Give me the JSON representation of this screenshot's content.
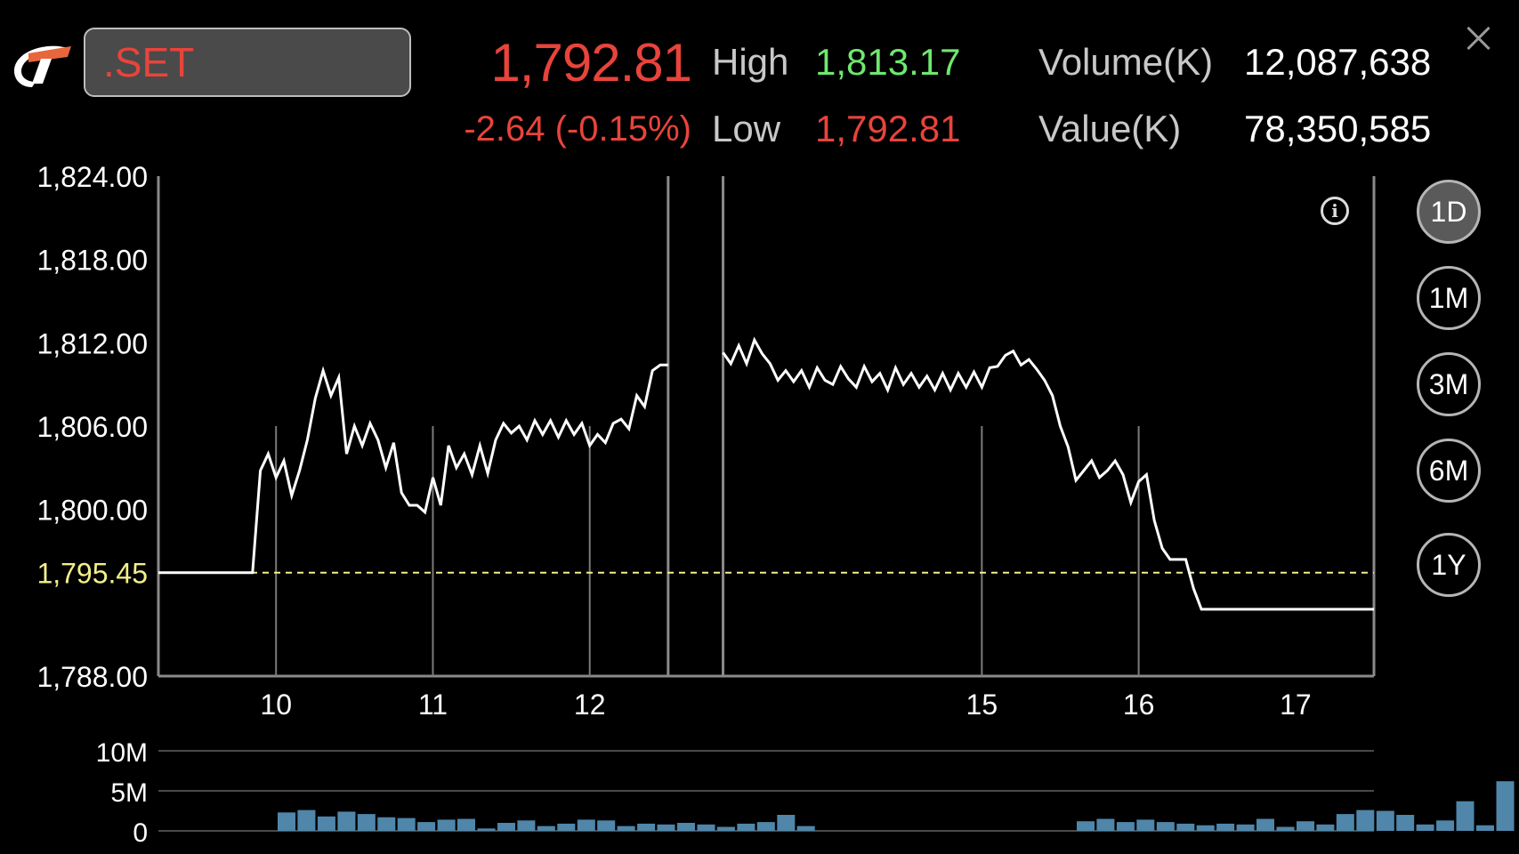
{
  "header": {
    "symbol": ".SET",
    "last": "1,792.81",
    "change": "-2.64 (-0.15%)",
    "high_label": "High",
    "high_value": "1,813.17",
    "low_label": "Low",
    "low_value": "1,792.81",
    "volume_label": "Volume(K)",
    "volume_value": "12,087,638",
    "value_label": "Value(K)",
    "value_value": "78,350,585"
  },
  "ranges": [
    "1D",
    "1M",
    "3M",
    "6M",
    "1Y"
  ],
  "active_range": "1D",
  "colors": {
    "price_up": "#6ee86e",
    "price_down": "#e8443b",
    "prior_close_line": "#f2ef8a",
    "volume_bar": "#4f86aa"
  },
  "icons": {
    "close": "close-icon",
    "info": "info-icon",
    "logo": "broker-logo-icon"
  },
  "chart_data": [
    {
      "type": "line",
      "ylim": [
        1788,
        1824
      ],
      "yticks": [
        "1,824.00",
        "1,818.00",
        "1,812.00",
        "1,806.00",
        "1,800.00",
        "1,788.00"
      ],
      "ytick_values": [
        1824,
        1818,
        1812,
        1806,
        1800,
        1788
      ],
      "reference_line": {
        "label": "1,795.45",
        "value": 1795.45
      },
      "xlim": [
        9.25,
        17
      ],
      "xticks": [
        "10",
        "11",
        "12",
        "15",
        "16",
        "17"
      ],
      "xtick_positions": [
        10,
        11,
        12,
        14.5,
        15.5,
        16.5
      ],
      "session_breaks": [
        12.5,
        12.85
      ],
      "grid": true,
      "series": [
        {
          "x": [
            9.25,
            9.85,
            9.9,
            9.95,
            10.0,
            10.05,
            10.1,
            10.15,
            10.2,
            10.25,
            10.3,
            10.35,
            10.4,
            10.45,
            10.5,
            10.55,
            10.6,
            10.65,
            10.7,
            10.75,
            10.8,
            10.85,
            10.9,
            10.95,
            11.0,
            11.05,
            11.1,
            11.15,
            11.2,
            11.25,
            11.3,
            11.35,
            11.4,
            11.45,
            11.5,
            11.55,
            11.6,
            11.65,
            11.7,
            11.75,
            11.8,
            11.85,
            11.9,
            11.95,
            12.0,
            12.05,
            12.1,
            12.15,
            12.2,
            12.25,
            12.3,
            12.35,
            12.4,
            12.45,
            12.5
          ],
          "y": [
            1795.45,
            1795.45,
            1802.8,
            1804,
            1802.3,
            1803.5,
            1801,
            1802.8,
            1805,
            1808,
            1810,
            1808.2,
            1809.5,
            1804,
            1806,
            1804.6,
            1806.2,
            1805,
            1803,
            1804.8,
            1801.2,
            1800.3,
            1800.3,
            1799.8,
            1802.3,
            1800.3,
            1804.6,
            1803,
            1804,
            1802.5,
            1804.6,
            1802.6,
            1805,
            1806.2,
            1805.5,
            1806,
            1805,
            1806.4,
            1805.4,
            1806.4,
            1805.2,
            1806.4,
            1805.4,
            1806.2,
            1804.6,
            1805.4,
            1804.8,
            1806.2,
            1806.5,
            1805.8,
            1808.2,
            1807.4,
            1810,
            1810.4,
            1810.4
          ]
        },
        {
          "x": [
            12.85,
            12.9,
            12.95,
            13.0,
            13.05,
            13.1,
            13.15,
            13.2,
            13.25,
            13.3,
            13.35,
            13.4,
            13.45,
            13.5,
            13.55,
            13.6,
            13.65,
            13.7,
            13.75,
            13.8,
            13.85,
            13.9,
            13.95,
            14.0,
            14.05,
            14.1,
            14.15,
            14.2,
            14.25,
            14.3,
            14.35,
            14.4,
            14.45,
            14.5,
            14.55,
            14.6,
            14.65,
            14.7,
            14.75,
            14.8,
            14.85,
            14.9,
            14.95,
            15.0,
            15.05,
            15.1,
            15.15,
            15.2,
            15.25,
            15.3,
            15.35,
            15.4,
            15.45,
            15.5,
            15.55,
            15.6,
            15.65,
            15.7,
            15.75,
            15.8,
            15.85,
            15.9,
            15.95,
            16.0,
            16.05,
            16.1,
            16.15,
            16.2,
            16.25,
            16.3,
            16.35,
            16.4,
            16.45,
            16.5,
            16.55,
            16.6,
            16.65,
            16.7,
            16.75,
            16.8,
            16.85,
            16.9,
            16.95,
            17.0
          ],
          "y": [
            1811.3,
            1810.5,
            1811.8,
            1810.5,
            1812.2,
            1811.2,
            1810.5,
            1809.3,
            1810,
            1809.2,
            1810,
            1808.8,
            1810.2,
            1809.3,
            1809,
            1810.3,
            1809.4,
            1808.8,
            1810.3,
            1809.2,
            1809.8,
            1808.6,
            1810.2,
            1809,
            1809.8,
            1808.8,
            1809.6,
            1808.6,
            1809.8,
            1808.6,
            1809.8,
            1808.8,
            1809.9,
            1808.8,
            1810.2,
            1810.3,
            1811.1,
            1811.4,
            1810.4,
            1810.8,
            1810.1,
            1809.3,
            1808.2,
            1806,
            1804.5,
            1802.1,
            1802.8,
            1803.5,
            1802.3,
            1802.8,
            1803.5,
            1802.5,
            1800.5,
            1802,
            1802.5,
            1799.2,
            1797.2,
            1796.4,
            1796.4,
            1796.4,
            1794.3,
            1792.81,
            1792.81,
            1792.81,
            1792.81,
            1792.81,
            1792.81,
            1792.81,
            1792.81,
            1792.81,
            1792.81,
            1792.81,
            1792.81,
            1792.81,
            1792.81,
            1792.81,
            1792.81,
            1792.81,
            1792.81,
            1792.81,
            1792.81,
            1792.81,
            1792.81,
            1792.81
          ]
        }
      ]
    },
    {
      "type": "bar",
      "ylim": [
        0,
        10
      ],
      "yticks": [
        "10M",
        "5M",
        "0"
      ],
      "ytick_values": [
        10,
        5,
        0
      ],
      "values": [
        2.3,
        2.6,
        1.8,
        2.4,
        2.1,
        1.7,
        1.6,
        1.1,
        1.4,
        1.5,
        0.3,
        1.0,
        1.3,
        0.6,
        0.9,
        1.4,
        1.3,
        0.6,
        0.9,
        0.8,
        1.0,
        0.8,
        0.5,
        0.9,
        1.1,
        2.0,
        0.6,
        0,
        0,
        0,
        0,
        0,
        0,
        0,
        0,
        0,
        0,
        0,
        0,
        0,
        1.2,
        1.5,
        1.1,
        1.4,
        1.1,
        0.9,
        0.7,
        0.9,
        0.8,
        1.5,
        0.5,
        1.2,
        0.8,
        2.1,
        2.6,
        2.5,
        2.0,
        0.8,
        1.3,
        3.7,
        0.7,
        6.2
      ]
    }
  ]
}
